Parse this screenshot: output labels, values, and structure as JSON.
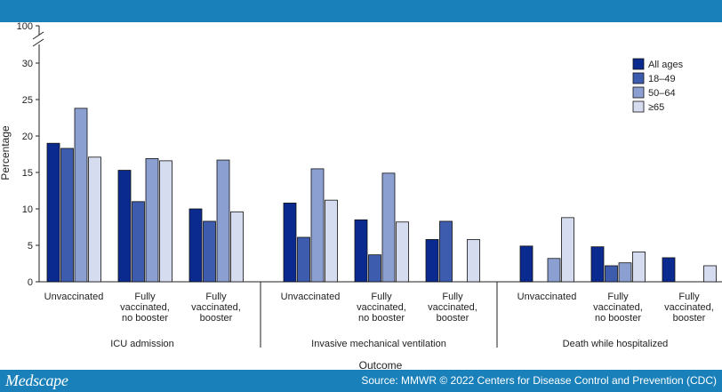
{
  "footer": {
    "brand": "Medscape",
    "source": "Source: MMWR © 2022 Centers for Disease Control and Prevention (CDC)"
  },
  "chart_data": {
    "type": "bar",
    "ylabel": "Percentage",
    "xlabel": "Outcome",
    "ylim": [
      0,
      30
    ],
    "y_break_label": "100",
    "y_ticks": [
      "0",
      "5",
      "10",
      "15",
      "20",
      "25",
      "30"
    ],
    "legend_position": "top-right",
    "series": [
      {
        "name": "All ages",
        "color": "#0b2a8f"
      },
      {
        "name": "18–49",
        "color": "#3d5cae"
      },
      {
        "name": "50–64",
        "color": "#8b9fd0"
      },
      {
        "name": "≥65",
        "color": "#d6dcf0"
      }
    ],
    "groups": [
      {
        "label": "ICU admission",
        "categories": [
          {
            "lines": [
              "Unvaccinated"
            ],
            "values": [
              19.0,
              18.3,
              23.8,
              17.1
            ]
          },
          {
            "lines": [
              "Fully",
              "vaccinated,",
              "no booster"
            ],
            "values": [
              15.3,
              11.0,
              16.9,
              16.6
            ]
          },
          {
            "lines": [
              "Fully",
              "vaccinated,",
              "booster"
            ],
            "values": [
              10.0,
              8.3,
              16.7,
              9.6
            ]
          }
        ]
      },
      {
        "label": "Invasive mechanical ventilation",
        "categories": [
          {
            "lines": [
              "Unvaccinated"
            ],
            "values": [
              10.8,
              6.1,
              15.5,
              11.2
            ]
          },
          {
            "lines": [
              "Fully",
              "vaccinated,",
              "no booster"
            ],
            "values": [
              8.5,
              3.7,
              14.9,
              8.2
            ]
          },
          {
            "lines": [
              "Fully",
              "vaccinated,",
              "booster"
            ],
            "values": [
              5.8,
              8.3,
              null,
              5.8
            ]
          }
        ]
      },
      {
        "label": "Death while hospitalized",
        "categories": [
          {
            "lines": [
              "Unvaccinated"
            ],
            "values": [
              4.9,
              null,
              3.2,
              8.8
            ]
          },
          {
            "lines": [
              "Fully",
              "vaccinated,",
              "no booster"
            ],
            "values": [
              4.8,
              2.2,
              2.6,
              4.1
            ]
          },
          {
            "lines": [
              "Fully",
              "vaccinated,",
              "booster"
            ],
            "values": [
              3.3,
              null,
              null,
              2.2
            ]
          }
        ]
      }
    ]
  }
}
